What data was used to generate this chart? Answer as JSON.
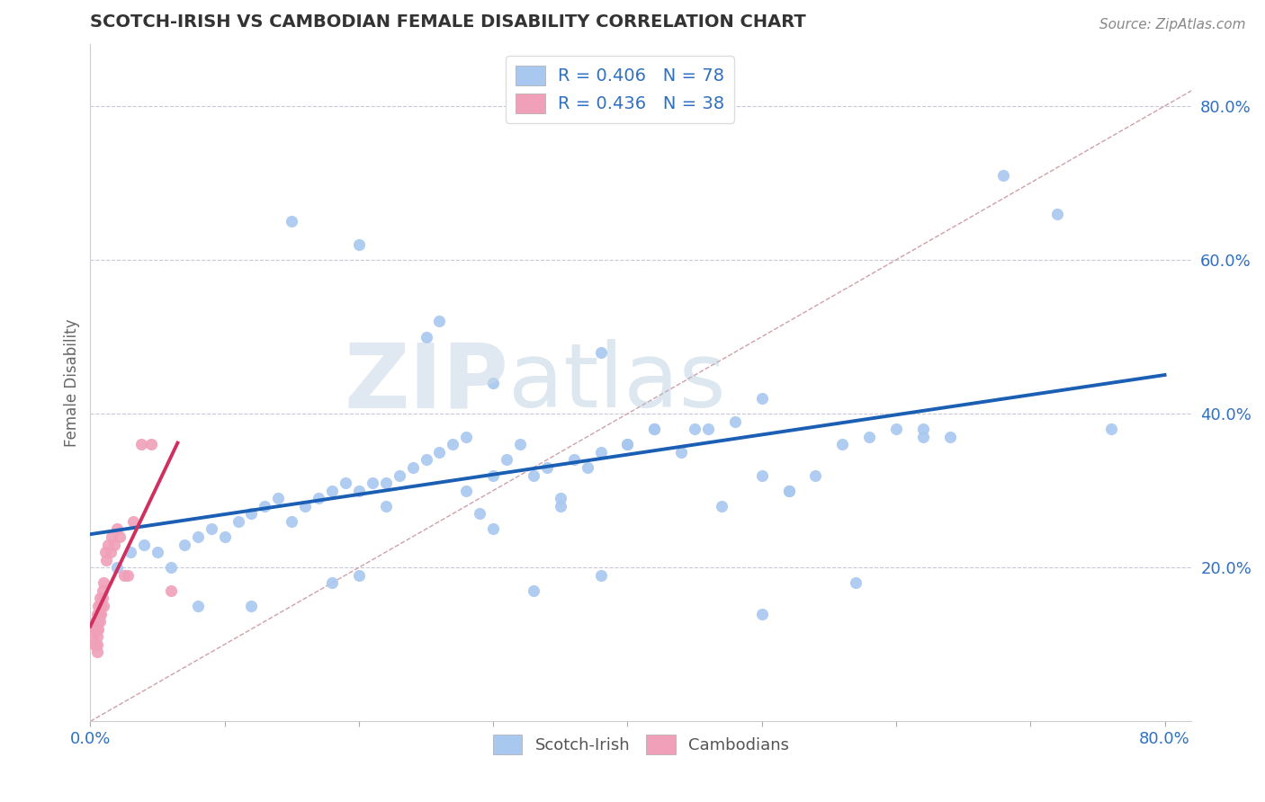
{
  "title": "SCOTCH-IRISH VS CAMBODIAN FEMALE DISABILITY CORRELATION CHART",
  "source": "Source: ZipAtlas.com",
  "ylabel": "Female Disability",
  "xlim": [
    0.0,
    0.82
  ],
  "ylim": [
    0.0,
    0.88
  ],
  "xticks": [
    0.0,
    0.1,
    0.2,
    0.3,
    0.4,
    0.5,
    0.6,
    0.7,
    0.8
  ],
  "xtick_labels": [
    "0.0%",
    "",
    "",
    "",
    "",
    "",
    "",
    "",
    "80.0%"
  ],
  "yticks_right": [
    0.2,
    0.4,
    0.6,
    0.8
  ],
  "ytick_labels_right": [
    "20.0%",
    "40.0%",
    "60.0%",
    "80.0%"
  ],
  "scotch_irish_color": "#a8c8f0",
  "cambodian_color": "#f0a0b8",
  "trend_scotch_color": "#1a5fb4",
  "trend_cambodian_color": "#d03060",
  "diag_color": "#d0a0a8",
  "legend_R_scotch": "R = 0.406",
  "legend_N_scotch": "N = 78",
  "legend_R_cambodian": "R = 0.436",
  "legend_N_cambodian": "N = 38",
  "watermark_zip": "ZIP",
  "watermark_atlas": "atlas",
  "background_color": "#ffffff",
  "scotch_irish_x": [
    0.02,
    0.03,
    0.04,
    0.05,
    0.06,
    0.07,
    0.08,
    0.09,
    0.1,
    0.11,
    0.12,
    0.13,
    0.14,
    0.15,
    0.16,
    0.17,
    0.18,
    0.19,
    0.2,
    0.21,
    0.22,
    0.23,
    0.24,
    0.25,
    0.26,
    0.27,
    0.28,
    0.29,
    0.3,
    0.31,
    0.32,
    0.33,
    0.34,
    0.35,
    0.36,
    0.37,
    0.38,
    0.4,
    0.42,
    0.44,
    0.46,
    0.48,
    0.5,
    0.52,
    0.54,
    0.56,
    0.58,
    0.6,
    0.62,
    0.64,
    0.5,
    0.38,
    0.26,
    0.15,
    0.2,
    0.25,
    0.3,
    0.35,
    0.4,
    0.45,
    0.18,
    0.22,
    0.28,
    0.33,
    0.38,
    0.42,
    0.47,
    0.52,
    0.57,
    0.62,
    0.68,
    0.72,
    0.76,
    0.5,
    0.3,
    0.2,
    0.12,
    0.08
  ],
  "scotch_irish_y": [
    0.2,
    0.22,
    0.23,
    0.22,
    0.2,
    0.23,
    0.24,
    0.25,
    0.24,
    0.26,
    0.27,
    0.28,
    0.29,
    0.26,
    0.28,
    0.29,
    0.3,
    0.31,
    0.3,
    0.31,
    0.31,
    0.32,
    0.33,
    0.34,
    0.35,
    0.36,
    0.37,
    0.27,
    0.32,
    0.34,
    0.36,
    0.32,
    0.33,
    0.29,
    0.34,
    0.33,
    0.35,
    0.36,
    0.38,
    0.35,
    0.38,
    0.39,
    0.14,
    0.3,
    0.32,
    0.36,
    0.37,
    0.38,
    0.38,
    0.37,
    0.42,
    0.48,
    0.52,
    0.65,
    0.62,
    0.5,
    0.44,
    0.28,
    0.36,
    0.38,
    0.18,
    0.28,
    0.3,
    0.17,
    0.19,
    0.38,
    0.28,
    0.3,
    0.18,
    0.37,
    0.71,
    0.66,
    0.38,
    0.32,
    0.25,
    0.19,
    0.15,
    0.15
  ],
  "cambodian_x": [
    0.002,
    0.003,
    0.003,
    0.004,
    0.004,
    0.004,
    0.005,
    0.005,
    0.005,
    0.005,
    0.005,
    0.005,
    0.006,
    0.006,
    0.006,
    0.007,
    0.007,
    0.007,
    0.008,
    0.008,
    0.009,
    0.009,
    0.01,
    0.01,
    0.011,
    0.012,
    0.013,
    0.015,
    0.016,
    0.018,
    0.02,
    0.022,
    0.025,
    0.028,
    0.032,
    0.038,
    0.045,
    0.06
  ],
  "cambodian_y": [
    0.11,
    0.12,
    0.1,
    0.13,
    0.12,
    0.1,
    0.14,
    0.13,
    0.11,
    0.1,
    0.12,
    0.09,
    0.13,
    0.15,
    0.12,
    0.14,
    0.16,
    0.13,
    0.15,
    0.14,
    0.17,
    0.16,
    0.18,
    0.15,
    0.22,
    0.21,
    0.23,
    0.22,
    0.24,
    0.23,
    0.25,
    0.24,
    0.19,
    0.19,
    0.26,
    0.36,
    0.36,
    0.17
  ]
}
